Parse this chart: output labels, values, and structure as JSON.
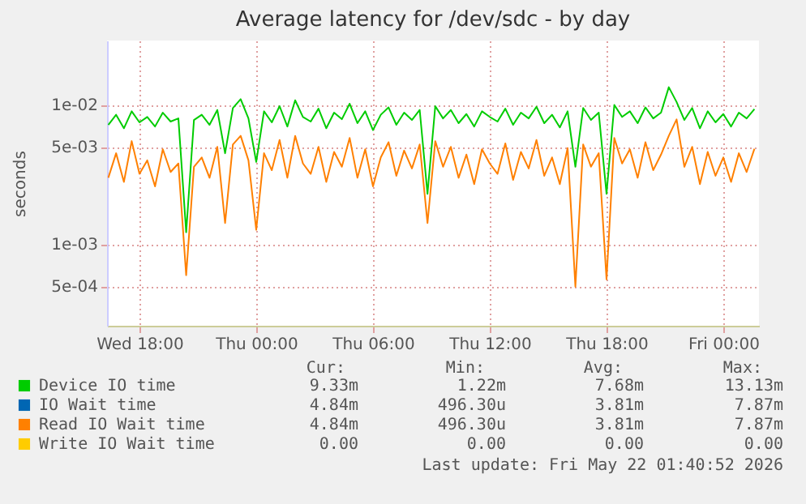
{
  "chart_data": {
    "type": "line",
    "title": "Average latency for /dev/sdc - by day",
    "ylabel": "seconds",
    "x": [
      "2026-05-20T16:24",
      "2026-05-20T16:48",
      "2026-05-20T17:12",
      "2026-05-20T17:36",
      "2026-05-20T18:00",
      "2026-05-20T18:24",
      "2026-05-20T18:48",
      "2026-05-20T19:12",
      "2026-05-20T19:36",
      "2026-05-20T20:00",
      "2026-05-20T20:24",
      "2026-05-20T20:48",
      "2026-05-20T21:12",
      "2026-05-20T21:36",
      "2026-05-20T22:00",
      "2026-05-20T22:24",
      "2026-05-20T22:48",
      "2026-05-20T23:12",
      "2026-05-20T23:36",
      "2026-05-21T00:00",
      "2026-05-21T00:24",
      "2026-05-21T00:48",
      "2026-05-21T01:12",
      "2026-05-21T01:36",
      "2026-05-21T02:00",
      "2026-05-21T02:24",
      "2026-05-21T02:48",
      "2026-05-21T03:12",
      "2026-05-21T03:36",
      "2026-05-21T04:00",
      "2026-05-21T04:24",
      "2026-05-21T04:48",
      "2026-05-21T05:12",
      "2026-05-21T05:36",
      "2026-05-21T06:00",
      "2026-05-21T06:24",
      "2026-05-21T06:48",
      "2026-05-21T07:12",
      "2026-05-21T07:36",
      "2026-05-21T08:00",
      "2026-05-21T08:24",
      "2026-05-21T08:48",
      "2026-05-21T09:12",
      "2026-05-21T09:36",
      "2026-05-21T10:00",
      "2026-05-21T10:24",
      "2026-05-21T10:48",
      "2026-05-21T11:12",
      "2026-05-21T11:36",
      "2026-05-21T12:00",
      "2026-05-21T12:24",
      "2026-05-21T12:48",
      "2026-05-21T13:12",
      "2026-05-21T13:36",
      "2026-05-21T14:00",
      "2026-05-21T14:24",
      "2026-05-21T14:48",
      "2026-05-21T15:12",
      "2026-05-21T15:36",
      "2026-05-21T16:00",
      "2026-05-21T16:24",
      "2026-05-21T16:48",
      "2026-05-21T17:12",
      "2026-05-21T17:36",
      "2026-05-21T18:00",
      "2026-05-21T18:24",
      "2026-05-21T18:48",
      "2026-05-21T19:12",
      "2026-05-21T19:36",
      "2026-05-21T20:00",
      "2026-05-21T20:24",
      "2026-05-21T20:48",
      "2026-05-21T21:12",
      "2026-05-21T21:36",
      "2026-05-21T22:00",
      "2026-05-21T22:24",
      "2026-05-21T22:48",
      "2026-05-21T23:12",
      "2026-05-21T23:36",
      "2026-05-22T00:00",
      "2026-05-22T00:24",
      "2026-05-22T00:48",
      "2026-05-22T01:12",
      "2026-05-22T01:36"
    ],
    "series": [
      {
        "name": "Device IO time",
        "color": "#00cc00",
        "values": [
          0.0072,
          0.0085,
          0.0068,
          0.009,
          0.0075,
          0.0082,
          0.007,
          0.0088,
          0.0076,
          0.008,
          0.00122,
          0.0078,
          0.0085,
          0.0072,
          0.0092,
          0.0045,
          0.0095,
          0.011,
          0.008,
          0.0039,
          0.009,
          0.0075,
          0.0098,
          0.007,
          0.0108,
          0.0082,
          0.0076,
          0.0094,
          0.0068,
          0.0088,
          0.0079,
          0.0102,
          0.0074,
          0.009,
          0.0066,
          0.0085,
          0.0096,
          0.0072,
          0.0088,
          0.0078,
          0.0092,
          0.0023,
          0.0098,
          0.008,
          0.0092,
          0.0074,
          0.0086,
          0.007,
          0.009,
          0.0082,
          0.0076,
          0.0094,
          0.0072,
          0.0088,
          0.008,
          0.0097,
          0.0074,
          0.0085,
          0.0069,
          0.009,
          0.0036,
          0.0095,
          0.0078,
          0.0088,
          0.0023,
          0.01,
          0.0082,
          0.009,
          0.0074,
          0.0096,
          0.008,
          0.0088,
          0.0134,
          0.0105,
          0.0078,
          0.0095,
          0.0068,
          0.009,
          0.0075,
          0.0086,
          0.007,
          0.0088,
          0.008,
          0.00933
        ]
      },
      {
        "name": "IO Wait time",
        "color": "#0066b3",
        "values": [
          null,
          null,
          null,
          null,
          null,
          null,
          null,
          null,
          null,
          null,
          null,
          null,
          null,
          null,
          null,
          null,
          null,
          null,
          null,
          null,
          null,
          null,
          null,
          null,
          null,
          null,
          null,
          null,
          null,
          null,
          null,
          null,
          null,
          null,
          null,
          null,
          null,
          null,
          null,
          null,
          null,
          null,
          null,
          null,
          null,
          null,
          null,
          null,
          null,
          null,
          null,
          null,
          null,
          null,
          null,
          null,
          null,
          null,
          null,
          null,
          null,
          null,
          null,
          null,
          null,
          null,
          null,
          null,
          null,
          null,
          null,
          null,
          null,
          null,
          null,
          null,
          null,
          null,
          null,
          null,
          null,
          null,
          null,
          null
        ]
      },
      {
        "name": "Read IO Wait time",
        "color": "#ff8000",
        "values": [
          0.003,
          0.0045,
          0.0028,
          0.0055,
          0.0032,
          0.004,
          0.0026,
          0.0048,
          0.0033,
          0.0038,
          0.0006,
          0.0036,
          0.0042,
          0.003,
          0.005,
          0.00142,
          0.0052,
          0.006,
          0.004,
          0.00127,
          0.0045,
          0.0034,
          0.0056,
          0.003,
          0.006,
          0.0038,
          0.0032,
          0.005,
          0.0028,
          0.0046,
          0.0036,
          0.0058,
          0.003,
          0.0048,
          0.0026,
          0.0042,
          0.0054,
          0.0031,
          0.0047,
          0.0035,
          0.0052,
          0.00142,
          0.0055,
          0.0036,
          0.005,
          0.003,
          0.0044,
          0.0027,
          0.0048,
          0.0038,
          0.0032,
          0.0053,
          0.0029,
          0.0046,
          0.0035,
          0.0056,
          0.0031,
          0.0042,
          0.0027,
          0.0049,
          0.000496,
          0.0052,
          0.0036,
          0.0045,
          0.00056,
          0.0058,
          0.0038,
          0.0048,
          0.003,
          0.0054,
          0.0034,
          0.0044,
          0.006,
          0.00787,
          0.0036,
          0.005,
          0.0027,
          0.0046,
          0.0031,
          0.0042,
          0.0028,
          0.0045,
          0.0033,
          0.00484
        ]
      },
      {
        "name": "Write IO Wait time",
        "color": "#ffcc00",
        "values": [
          null,
          null,
          null,
          null,
          null,
          null,
          null,
          null,
          null,
          null,
          null,
          null,
          null,
          null,
          null,
          null,
          null,
          null,
          null,
          null,
          null,
          null,
          null,
          null,
          null,
          null,
          null,
          null,
          null,
          null,
          null,
          null,
          null,
          null,
          null,
          null,
          null,
          null,
          null,
          null,
          null,
          null,
          null,
          null,
          null,
          null,
          null,
          null,
          null,
          null,
          null,
          null,
          null,
          null,
          null,
          null,
          null,
          null,
          null,
          null,
          null,
          null,
          null,
          null,
          null,
          null,
          null,
          null,
          null,
          null,
          null,
          null,
          null,
          null,
          null,
          null,
          null,
          null,
          null,
          null,
          null,
          null,
          null,
          null
        ]
      }
    ],
    "log": "y",
    "xlim": [
      "2026-05-20T16:20",
      "2026-05-22T01:50"
    ],
    "xticks": [
      {
        "value": "2026-05-20T18:00",
        "label": "Wed 18:00"
      },
      {
        "value": "2026-05-21T00:00",
        "label": "Thu 00:00"
      },
      {
        "value": "2026-05-21T06:00",
        "label": "Thu 06:00"
      },
      {
        "value": "2026-05-21T12:00",
        "label": "Thu 12:00"
      },
      {
        "value": "2026-05-21T18:00",
        "label": "Thu 18:00"
      },
      {
        "value": "2026-05-22T00:00",
        "label": "Fri 00:00"
      }
    ],
    "ylim": [
      0.00026,
      0.029
    ],
    "yticks": [
      {
        "value": 0.0005,
        "label": "5e-04"
      },
      {
        "value": 0.001,
        "label": "1e-03"
      },
      {
        "value": 0.005,
        "label": "5e-03"
      },
      {
        "value": 0.01,
        "label": "1e-02"
      }
    ],
    "grid": true,
    "legend": "bottom left",
    "annotations": [
      "Cur:",
      "Min:",
      "Avg:",
      "Max:",
      "9.33m",
      "1.22m",
      "7.68m",
      "13.13m",
      "4.84m",
      "496.30u",
      "3.81m",
      "7.87m",
      "4.84m",
      "496.30u",
      "3.81m",
      "7.87m",
      "0.00",
      "0.00",
      "0.00",
      "0.00",
      "Last update: Fri May 22 01:40:52 2026"
    ]
  }
}
